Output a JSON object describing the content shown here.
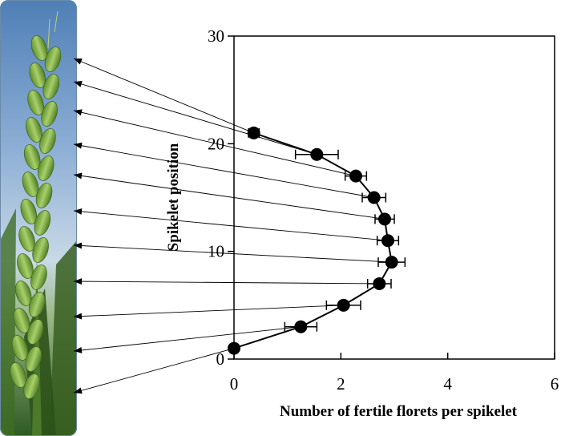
{
  "chart_data": {
    "type": "scatter",
    "title": "",
    "xlabel": "Number of fertile florets per spikelet",
    "ylabel": "Spikelet position",
    "xlim": [
      0,
      6
    ],
    "ylim": [
      0,
      30
    ],
    "xticks": [
      0,
      2,
      4,
      6
    ],
    "yticks": [
      0,
      10,
      20,
      30
    ],
    "grid": false,
    "connected": true,
    "marker_color": "#000000",
    "series": [
      {
        "points": [
          {
            "x": 0.0,
            "y": 1,
            "err": 0.0
          },
          {
            "x": 1.25,
            "y": 3,
            "err": 0.3
          },
          {
            "x": 2.05,
            "y": 5,
            "err": 0.32
          },
          {
            "x": 2.72,
            "y": 7,
            "err": 0.22
          },
          {
            "x": 2.95,
            "y": 9,
            "err": 0.25
          },
          {
            "x": 2.88,
            "y": 11,
            "err": 0.2
          },
          {
            "x": 2.82,
            "y": 13,
            "err": 0.18
          },
          {
            "x": 2.62,
            "y": 15,
            "err": 0.22
          },
          {
            "x": 2.28,
            "y": 17,
            "err": 0.2
          },
          {
            "x": 1.55,
            "y": 19,
            "err": 0.4
          },
          {
            "x": 0.37,
            "y": 21,
            "err": 0.1
          }
        ]
      }
    ]
  },
  "photo": {
    "description_icon": "wheat-spike-photo",
    "sky_color": "#7fa3cc",
    "plant_color": "#6fa33a"
  }
}
